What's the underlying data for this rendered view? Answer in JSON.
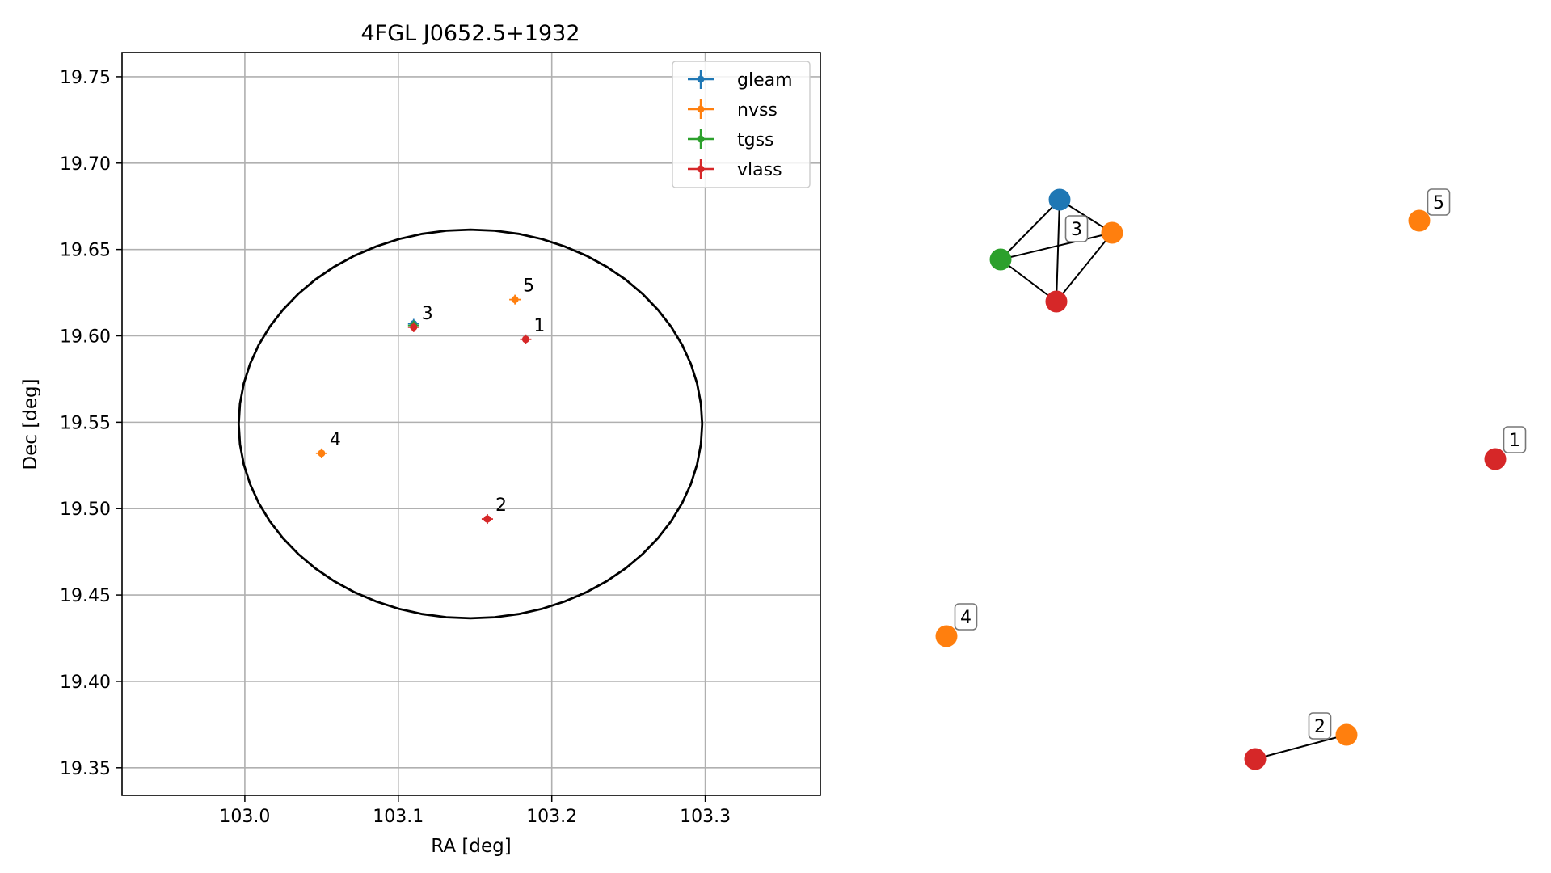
{
  "chart_data": [
    {
      "type": "scatter",
      "title": "4FGL J0652.5+1932",
      "xlabel": "RA [deg]",
      "ylabel": "Dec [deg]",
      "xlim": [
        102.92,
        103.375
      ],
      "ylim": [
        19.334,
        19.764
      ],
      "x_ticks": [
        "103.0",
        "103.1",
        "103.2",
        "103.3"
      ],
      "y_ticks": [
        "19.35",
        "19.40",
        "19.45",
        "19.50",
        "19.55",
        "19.60",
        "19.65",
        "19.70",
        "19.75"
      ],
      "grid": true,
      "legend_position": "top-right",
      "ellipse": {
        "center_ra": 103.147,
        "center_dec": 19.549,
        "semi_axis_ra": 0.151,
        "semi_axis_dec": 0.1125
      },
      "series": [
        {
          "name": "gleam",
          "color": "#1f77b4",
          "points": [
            {
              "ra": 103.11,
              "dec": 19.607,
              "label": ""
            }
          ]
        },
        {
          "name": "nvss",
          "color": "#ff7f0e",
          "points": [
            {
              "ra": 103.176,
              "dec": 19.621,
              "label": "5"
            },
            {
              "ra": 103.05,
              "dec": 19.532,
              "label": "4"
            }
          ]
        },
        {
          "name": "tgss",
          "color": "#2ca02c",
          "points": [
            {
              "ra": 103.11,
              "dec": 19.606,
              "label": ""
            }
          ]
        },
        {
          "name": "vlass",
          "color": "#d62728",
          "points": [
            {
              "ra": 103.183,
              "dec": 19.598,
              "label": "1"
            },
            {
              "ra": 103.158,
              "dec": 19.494,
              "label": "2"
            },
            {
              "ra": 103.11,
              "dec": 19.605,
              "label": "3"
            }
          ]
        }
      ]
    },
    {
      "type": "network",
      "nodes": [
        {
          "id": "g3",
          "color": "#1f77b4"
        },
        {
          "id": "n3",
          "color": "#ff7f0e"
        },
        {
          "id": "t3",
          "color": "#2ca02c"
        },
        {
          "id": "v3",
          "color": "#d62728"
        },
        {
          "id": "n5",
          "color": "#ff7f0e"
        },
        {
          "id": "v1",
          "color": "#d62728"
        },
        {
          "id": "n4",
          "color": "#ff7f0e"
        },
        {
          "id": "n2",
          "color": "#ff7f0e"
        },
        {
          "id": "v2",
          "color": "#d62728"
        }
      ],
      "edges": [
        [
          "g3",
          "n3"
        ],
        [
          "g3",
          "t3"
        ],
        [
          "g3",
          "v3"
        ],
        [
          "n3",
          "t3"
        ],
        [
          "n3",
          "v3"
        ],
        [
          "t3",
          "v3"
        ],
        [
          "v2",
          "n2"
        ]
      ],
      "labels": [
        {
          "text": "3"
        },
        {
          "text": "5"
        },
        {
          "text": "1"
        },
        {
          "text": "4"
        },
        {
          "text": "2"
        }
      ]
    }
  ]
}
